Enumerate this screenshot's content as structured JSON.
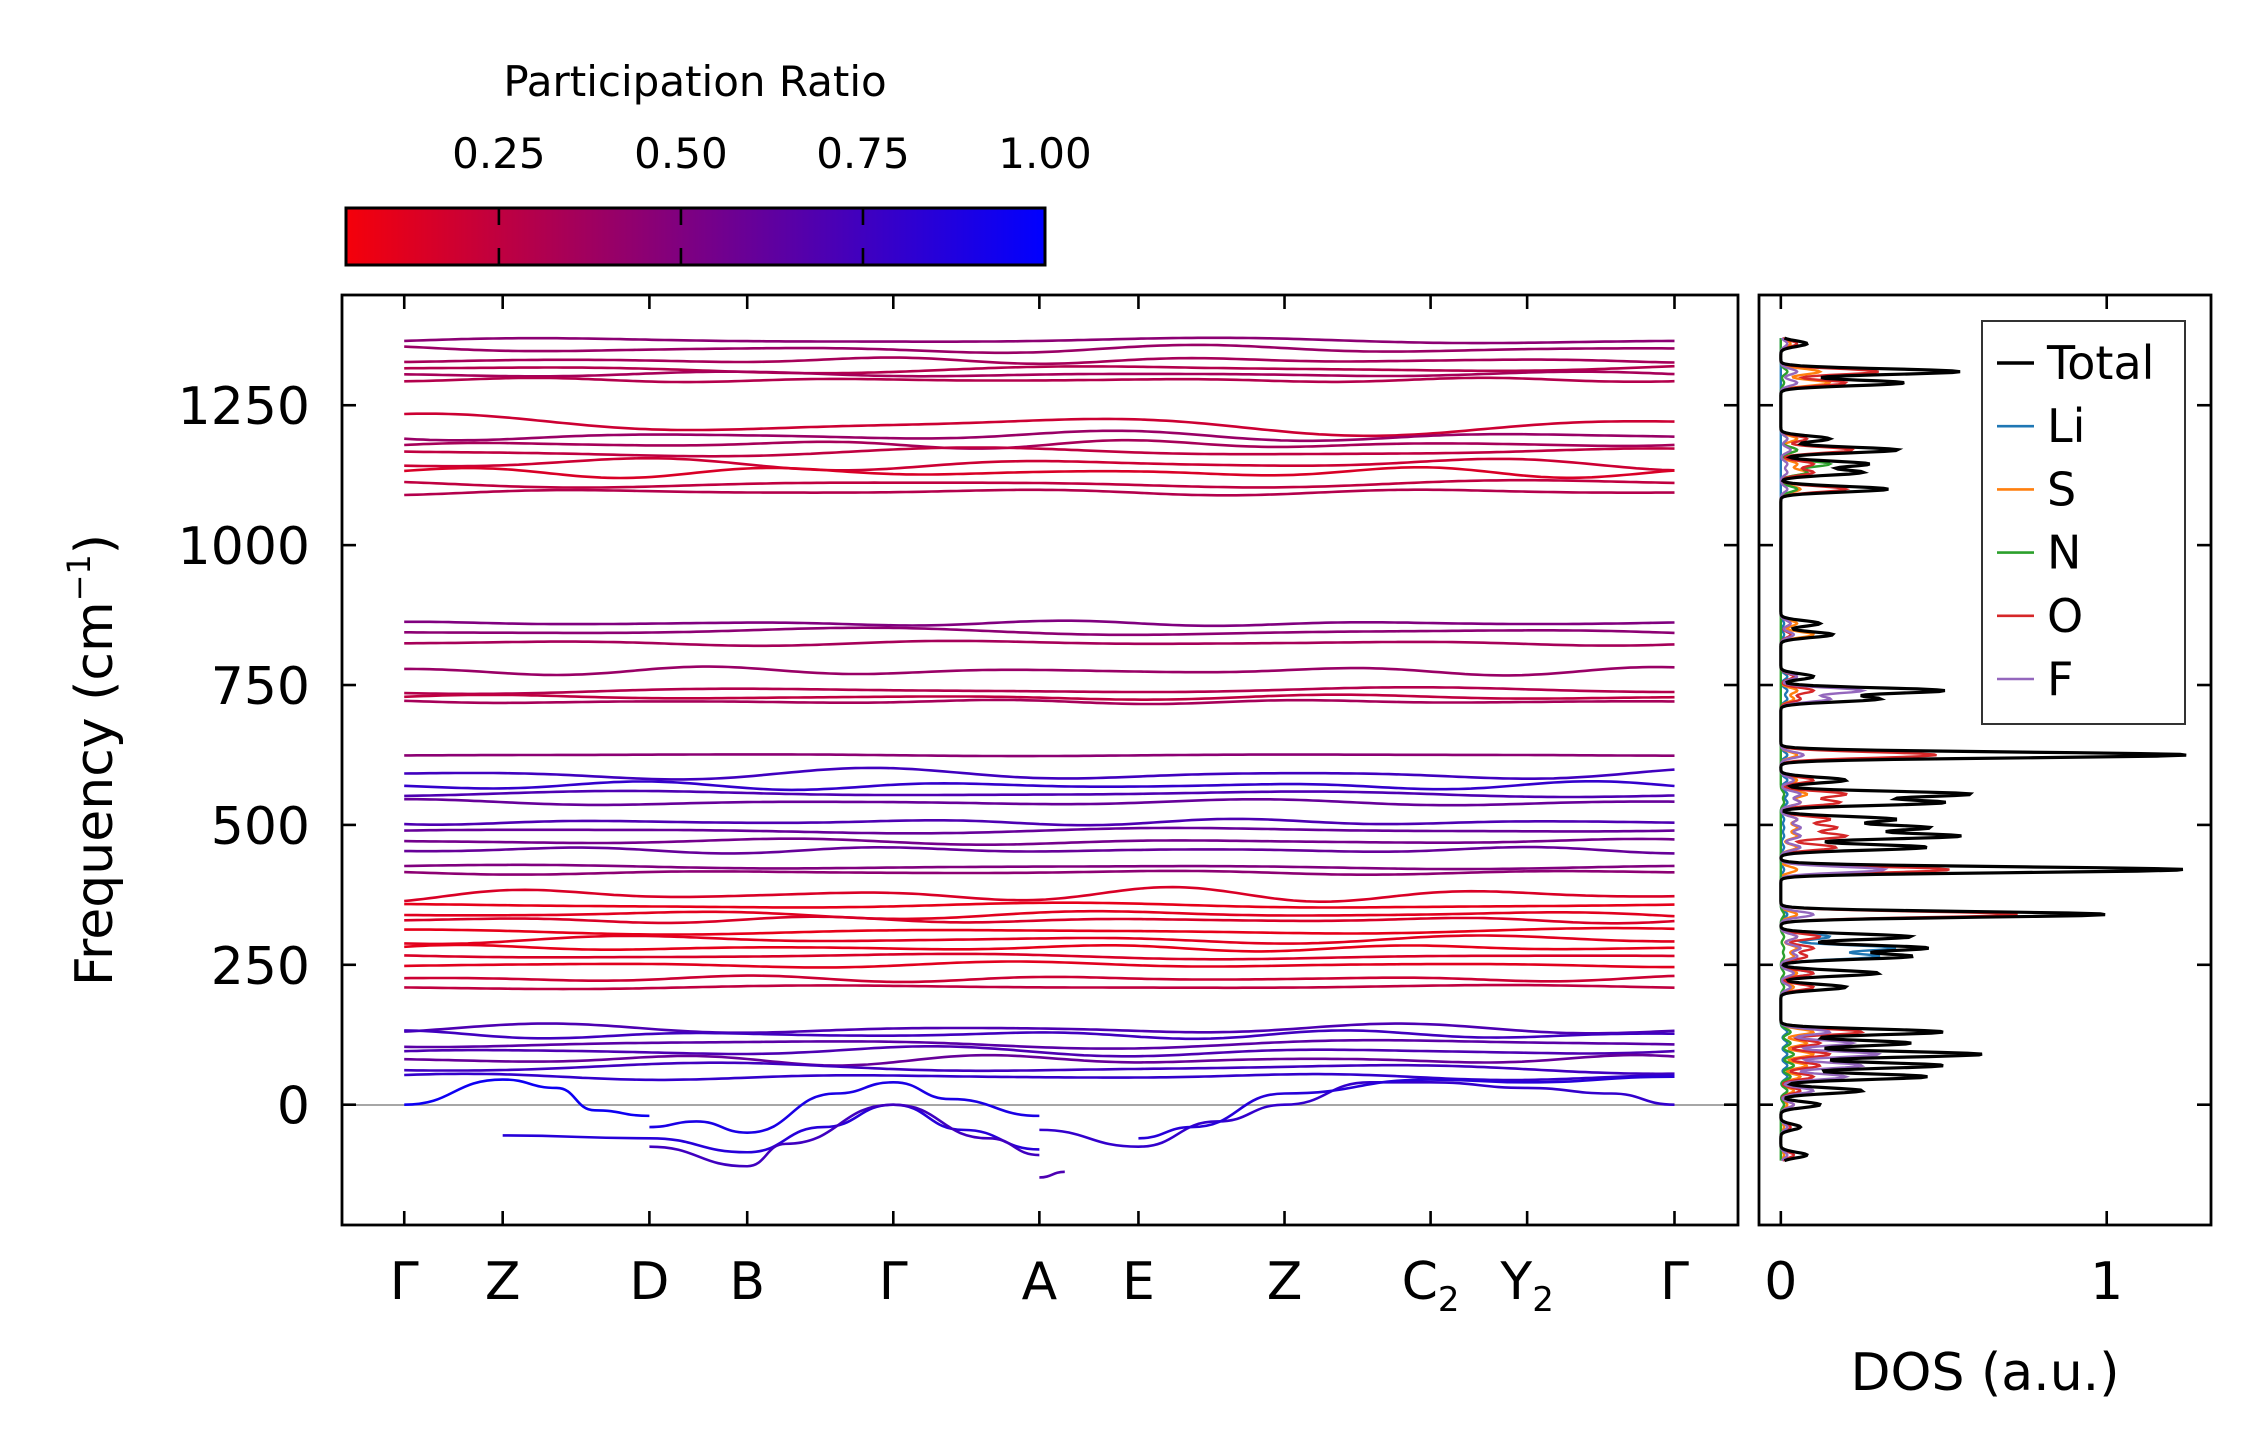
{
  "chart_data": [
    {
      "type": "line",
      "title": "",
      "xlabel": "",
      "ylabel": "Frequency (cm",
      "ylabel_sup": "−1",
      "ylabel_end": ")",
      "ylim": [
        -215,
        1447
      ],
      "xlim": [
        -0.049,
        1.05
      ],
      "yticks": [
        0,
        250,
        500,
        750,
        1000,
        1250
      ],
      "ytick_labels": [
        "0",
        "250",
        "500",
        "750",
        "1000",
        "1250"
      ],
      "kpoints": [
        {
          "label": "Γ",
          "sub": "",
          "x": 0.0
        },
        {
          "label": "Z",
          "sub": "",
          "x": 0.0775
        },
        {
          "label": "D",
          "sub": "",
          "x": 0.193
        },
        {
          "label": "B",
          "sub": "",
          "x": 0.27
        },
        {
          "label": "Γ",
          "sub": "",
          "x": 0.385
        },
        {
          "label": "A",
          "sub": "",
          "x": 0.5
        },
        {
          "label": "E",
          "sub": "",
          "x": 0.578
        },
        {
          "label": "Z",
          "sub": "",
          "x": 0.693
        },
        {
          "label": "C",
          "sub": "2",
          "x": 0.808
        },
        {
          "label": "Y",
          "sub": "2",
          "x": 0.884
        },
        {
          "label": "Γ",
          "sub": "",
          "x": 1.0
        }
      ],
      "bands_note": "frequency at Γ (cm-1), participation ratio, dispersion amplitude (cm-1)",
      "bands": [
        [
          1365,
          0.45,
          6
        ],
        [
          1350,
          0.4,
          8
        ],
        [
          1330,
          0.35,
          6
        ],
        [
          1315,
          0.3,
          8
        ],
        [
          1305,
          0.35,
          5
        ],
        [
          1295,
          0.3,
          4
        ],
        [
          1215,
          0.2,
          20
        ],
        [
          1195,
          0.4,
          10
        ],
        [
          1180,
          0.35,
          8
        ],
        [
          1165,
          0.25,
          10
        ],
        [
          1145,
          0.2,
          12
        ],
        [
          1130,
          0.15,
          10
        ],
        [
          1110,
          0.25,
          8
        ],
        [
          1095,
          0.3,
          6
        ],
        [
          860,
          0.5,
          5
        ],
        [
          845,
          0.45,
          8
        ],
        [
          825,
          0.35,
          5
        ],
        [
          775,
          0.4,
          8
        ],
        [
          740,
          0.3,
          6
        ],
        [
          728,
          0.25,
          5
        ],
        [
          720,
          0.35,
          4
        ],
        [
          625,
          0.45,
          2
        ],
        [
          590,
          0.75,
          12
        ],
        [
          570,
          0.8,
          8
        ],
        [
          555,
          0.7,
          6
        ],
        [
          540,
          0.6,
          6
        ],
        [
          505,
          0.7,
          6
        ],
        [
          490,
          0.6,
          6
        ],
        [
          470,
          0.55,
          6
        ],
        [
          455,
          0.6,
          6
        ],
        [
          425,
          0.5,
          4
        ],
        [
          415,
          0.45,
          4
        ],
        [
          375,
          0.15,
          14
        ],
        [
          355,
          0.1,
          6
        ],
        [
          340,
          0.12,
          8
        ],
        [
          330,
          0.15,
          6
        ],
        [
          310,
          0.1,
          6
        ],
        [
          295,
          0.12,
          8
        ],
        [
          280,
          0.1,
          6
        ],
        [
          265,
          0.15,
          6
        ],
        [
          250,
          0.12,
          6
        ],
        [
          225,
          0.2,
          6
        ],
        [
          210,
          0.25,
          4
        ],
        [
          135,
          0.7,
          10
        ],
        [
          125,
          0.75,
          8
        ],
        [
          110,
          0.65,
          10
        ],
        [
          95,
          0.7,
          10
        ],
        [
          80,
          0.6,
          10
        ],
        [
          65,
          0.75,
          10
        ],
        [
          50,
          0.8,
          6
        ]
      ],
      "low_branches": [
        {
          "pr": 0.95,
          "points": [
            [
              0,
              0
            ],
            [
              0.0775,
              45
            ],
            [
              0.12,
              30
            ],
            [
              0.15,
              -10
            ],
            [
              0.193,
              -20
            ]
          ]
        },
        {
          "pr": 0.85,
          "points": [
            [
              0.0775,
              -55
            ],
            [
              0.193,
              -60
            ],
            [
              0.27,
              -85
            ],
            [
              0.33,
              -40
            ],
            [
              0.385,
              0
            ],
            [
              0.44,
              -45
            ],
            [
              0.5,
              -80
            ]
          ]
        },
        {
          "pr": 0.75,
          "points": [
            [
              0.193,
              -75
            ],
            [
              0.27,
              -110
            ],
            [
              0.3,
              -70
            ],
            [
              0.385,
              0
            ],
            [
              0.46,
              -60
            ],
            [
              0.5,
              -90
            ]
          ]
        },
        {
          "pr": 0.9,
          "points": [
            [
              0.193,
              -40
            ],
            [
              0.23,
              -30
            ],
            [
              0.27,
              -50
            ],
            [
              0.34,
              20
            ],
            [
              0.385,
              40
            ],
            [
              0.43,
              10
            ],
            [
              0.5,
              -20
            ]
          ]
        },
        {
          "pr": 0.8,
          "points": [
            [
              0.5,
              -45
            ],
            [
              0.578,
              -75
            ],
            [
              0.64,
              -30
            ],
            [
              0.693,
              0
            ],
            [
              0.76,
              40
            ],
            [
              0.808,
              40
            ],
            [
              0.884,
              30
            ],
            [
              0.95,
              20
            ],
            [
              1.0,
              0
            ]
          ]
        },
        {
          "pr": 0.7,
          "points": [
            [
              0.5,
              -130
            ],
            [
              0.52,
              -120
            ]
          ]
        },
        {
          "pr": 0.85,
          "points": [
            [
              0.578,
              -60
            ],
            [
              0.62,
              -40
            ],
            [
              0.693,
              20
            ],
            [
              0.808,
              45
            ],
            [
              0.884,
              40
            ],
            [
              1.0,
              50
            ]
          ]
        }
      ]
    },
    {
      "type": "line",
      "xlabel": "DOS (a.u.)",
      "xlim": [
        -0.067,
        1.32
      ],
      "xticks": [
        0,
        1
      ],
      "xtick_labels": [
        "0",
        "1"
      ],
      "ylim": [
        -215,
        1447
      ],
      "legend": {
        "placement": "top-right",
        "entries": [
          "Total",
          "Li",
          "S",
          "N",
          "O",
          "F"
        ]
      },
      "colors": {
        "Total": "#000000",
        "Li": "#1f77b4",
        "S": "#ff7f0e",
        "N": "#2ca02c",
        "O": "#d62728",
        "F": "#9467bd"
      },
      "peaks_note": "[frequency, Total, Li, S, N, O, F]",
      "peaks": [
        [
          1360,
          0.08,
          0,
          0.03,
          0,
          0.05,
          0.02
        ],
        [
          1310,
          0.55,
          0,
          0.12,
          0.02,
          0.3,
          0.05
        ],
        [
          1290,
          0.38,
          0,
          0.15,
          0.01,
          0.2,
          0.05
        ],
        [
          1190,
          0.15,
          0,
          0.05,
          0.02,
          0.08,
          0.02
        ],
        [
          1170,
          0.36,
          0,
          0.05,
          0.05,
          0.22,
          0.03
        ],
        [
          1145,
          0.27,
          0,
          0.05,
          0.15,
          0.1,
          0.02
        ],
        [
          1130,
          0.25,
          0,
          0.08,
          0.08,
          0.1,
          0.02
        ],
        [
          1100,
          0.33,
          0,
          0.06,
          0.05,
          0.2,
          0.02
        ],
        [
          860,
          0.12,
          0.01,
          0.05,
          0,
          0.03,
          0.03
        ],
        [
          840,
          0.16,
          0.01,
          0.1,
          0,
          0.03,
          0.04
        ],
        [
          765,
          0.1,
          0.02,
          0.04,
          0,
          0.04,
          0.05
        ],
        [
          740,
          0.5,
          0.02,
          0.05,
          0,
          0.1,
          0.25
        ],
        [
          725,
          0.3,
          0.02,
          0.04,
          0,
          0.06,
          0.15
        ],
        [
          625,
          1.25,
          0.02,
          0.05,
          0,
          0.48,
          0.07
        ],
        [
          580,
          0.2,
          0.02,
          0.05,
          0,
          0.1,
          0.04
        ],
        [
          555,
          0.58,
          0.02,
          0.08,
          0.01,
          0.2,
          0.06
        ],
        [
          540,
          0.5,
          0.02,
          0.06,
          0.01,
          0.18,
          0.06
        ],
        [
          510,
          0.35,
          0.01,
          0.05,
          0,
          0.15,
          0.05
        ],
        [
          495,
          0.45,
          0.01,
          0.05,
          0,
          0.17,
          0.06
        ],
        [
          480,
          0.55,
          0.01,
          0.05,
          0,
          0.2,
          0.06
        ],
        [
          460,
          0.45,
          0.01,
          0.05,
          0,
          0.17,
          0.06
        ],
        [
          420,
          1.24,
          0.01,
          0.05,
          0,
          0.52,
          0.32
        ],
        [
          340,
          1.0,
          0.02,
          0.05,
          0.01,
          0.73,
          0.1
        ],
        [
          300,
          0.4,
          0.15,
          0.05,
          0.01,
          0.12,
          0.05
        ],
        [
          280,
          0.45,
          0.35,
          0.05,
          0.01,
          0.1,
          0.06
        ],
        [
          265,
          0.4,
          0.3,
          0.04,
          0.01,
          0.08,
          0.05
        ],
        [
          235,
          0.3,
          0.1,
          0.05,
          0.01,
          0.1,
          0.04
        ],
        [
          210,
          0.2,
          0.03,
          0.04,
          0.01,
          0.1,
          0.03
        ],
        [
          130,
          0.5,
          0.02,
          0.1,
          0.03,
          0.25,
          0.15
        ],
        [
          110,
          0.4,
          0.02,
          0.08,
          0.03,
          0.12,
          0.22
        ],
        [
          90,
          0.62,
          0.02,
          0.1,
          0.04,
          0.15,
          0.3
        ],
        [
          70,
          0.5,
          0.02,
          0.08,
          0.04,
          0.12,
          0.25
        ],
        [
          50,
          0.45,
          0.02,
          0.06,
          0.03,
          0.1,
          0.2
        ],
        [
          25,
          0.25,
          0.02,
          0.04,
          0.02,
          0.06,
          0.1
        ],
        [
          0,
          0.12,
          0.01,
          0.02,
          0.01,
          0.04,
          0.04
        ],
        [
          -40,
          0.06,
          0.01,
          0.01,
          0,
          0.03,
          0.02
        ],
        [
          -90,
          0.08,
          0.01,
          0.01,
          0,
          0.04,
          0.02
        ]
      ]
    }
  ],
  "colorbar": {
    "title": "Participation Ratio",
    "range": [
      0.04,
      1.0
    ],
    "ticks": [
      0.25,
      0.5,
      0.75,
      1.0
    ],
    "tick_labels": [
      "0.25",
      "0.50",
      "0.75",
      "1.00"
    ],
    "low_color": "#ff0000",
    "high_color": "#0000ff"
  }
}
